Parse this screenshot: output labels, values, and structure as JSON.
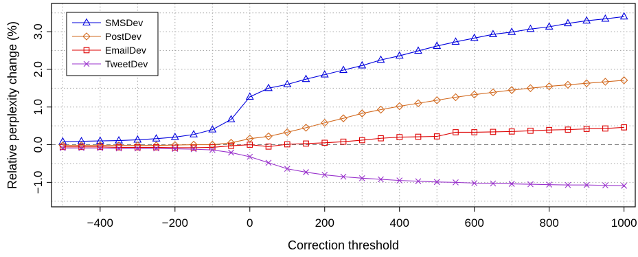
{
  "chart_data": {
    "type": "line",
    "title": "",
    "xlabel": "Correction threshold",
    "ylabel": "Relative perplexity change (%)",
    "xlim": [
      -530,
      1030
    ],
    "ylim": [
      -1.65,
      3.75
    ],
    "xticks": [
      -400,
      -200,
      0,
      200,
      400,
      600,
      800,
      1000
    ],
    "xtick_labels": [
      "−400",
      "−200",
      "0",
      "200",
      "400",
      "600",
      "800",
      "1000"
    ],
    "yticks": [
      -1.0,
      0.0,
      1.0,
      2.0,
      3.0
    ],
    "ytick_labels": [
      "−1.0",
      "0.0",
      "1.0",
      "2.0",
      "3.0"
    ],
    "grid": true,
    "reference_line_y": 0,
    "legend_position": "top-left",
    "x": [
      -500,
      -450,
      -400,
      -350,
      -300,
      -250,
      -200,
      -150,
      -100,
      -50,
      0,
      50,
      100,
      150,
      200,
      250,
      300,
      350,
      400,
      450,
      500,
      550,
      600,
      650,
      700,
      750,
      800,
      850,
      900,
      950,
      1000
    ],
    "series": [
      {
        "name": "SMSDev",
        "color": "#0000dd",
        "marker": "triangle",
        "values": [
          0.08,
          0.09,
          0.1,
          0.11,
          0.13,
          0.16,
          0.2,
          0.27,
          0.4,
          0.67,
          1.27,
          1.5,
          1.6,
          1.74,
          1.86,
          1.98,
          2.1,
          2.25,
          2.36,
          2.49,
          2.62,
          2.73,
          2.83,
          2.93,
          2.99,
          3.07,
          3.13,
          3.22,
          3.29,
          3.34,
          3.4
        ]
      },
      {
        "name": "PostDev",
        "color": "#d2691e",
        "marker": "diamond",
        "values": [
          -0.02,
          -0.02,
          -0.02,
          -0.02,
          -0.02,
          -0.02,
          -0.01,
          0.0,
          0.0,
          0.05,
          0.16,
          0.22,
          0.33,
          0.45,
          0.58,
          0.7,
          0.83,
          0.93,
          1.02,
          1.1,
          1.18,
          1.26,
          1.33,
          1.39,
          1.45,
          1.5,
          1.55,
          1.59,
          1.63,
          1.67,
          1.71
        ]
      },
      {
        "name": "EmailDev",
        "color": "#dd0000",
        "marker": "square",
        "values": [
          -0.06,
          -0.06,
          -0.06,
          -0.07,
          -0.07,
          -0.07,
          -0.08,
          -0.08,
          -0.07,
          -0.03,
          0.0,
          -0.05,
          0.01,
          0.03,
          0.05,
          0.08,
          0.12,
          0.17,
          0.2,
          0.21,
          0.22,
          0.33,
          0.33,
          0.34,
          0.35,
          0.37,
          0.39,
          0.4,
          0.42,
          0.43,
          0.46
        ]
      },
      {
        "name": "TweetDev",
        "color": "#9932cc",
        "marker": "x",
        "values": [
          -0.09,
          -0.09,
          -0.09,
          -0.1,
          -0.1,
          -0.1,
          -0.11,
          -0.12,
          -0.14,
          -0.21,
          -0.32,
          -0.48,
          -0.64,
          -0.73,
          -0.8,
          -0.85,
          -0.89,
          -0.92,
          -0.95,
          -0.97,
          -0.99,
          -1.0,
          -1.02,
          -1.03,
          -1.04,
          -1.05,
          -1.06,
          -1.07,
          -1.07,
          -1.08,
          -1.09
        ]
      }
    ]
  }
}
